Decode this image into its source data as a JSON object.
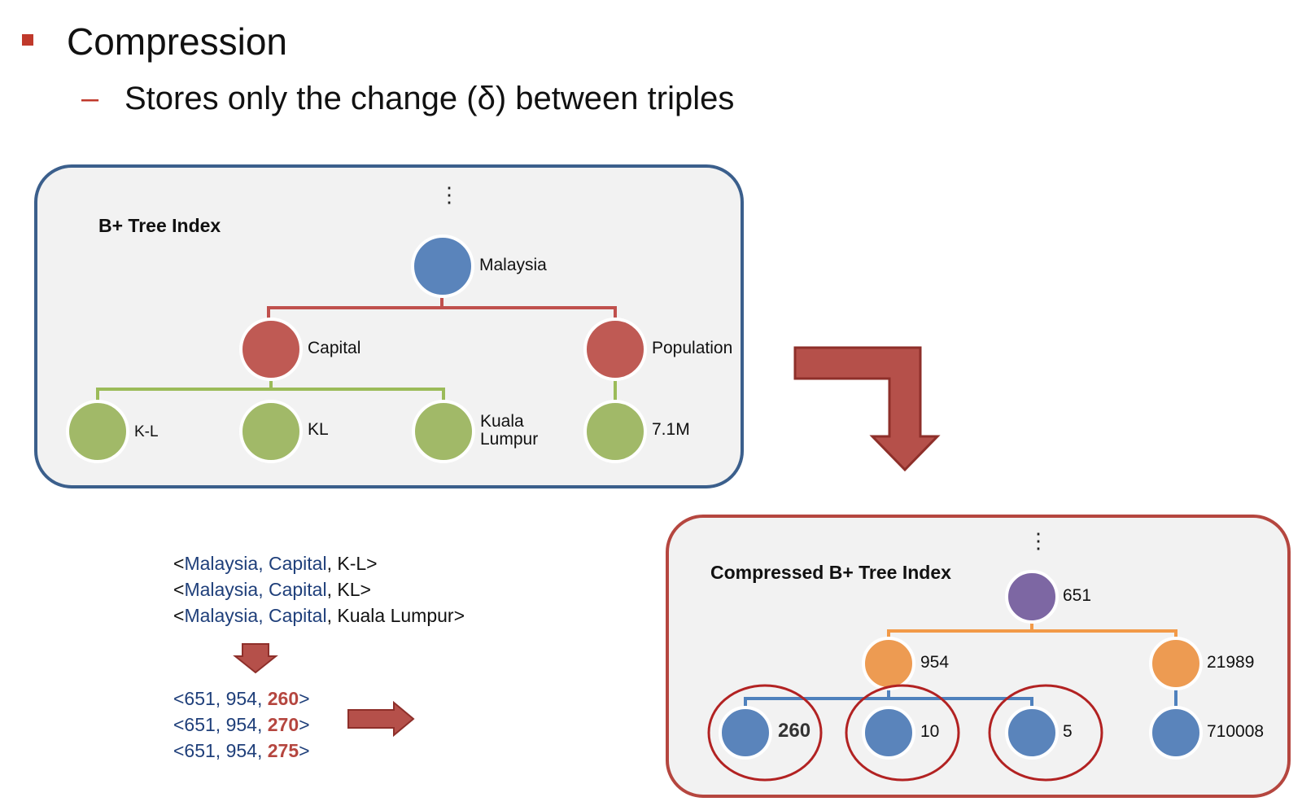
{
  "header": {
    "bullet": "Compression",
    "sub_bullet_dash": "–",
    "sub_bullet": "Stores only the change (δ) between triples"
  },
  "top_panel": {
    "title": "B+ Tree Index",
    "ellipsis": "⋮",
    "nodes": {
      "root": "Malaysia",
      "capital": "Capital",
      "population": "Population",
      "kl_dash": "K-L",
      "kl": "KL",
      "kuala_lumpur": [
        "Kuala",
        "Lumpur"
      ],
      "pop_value": "7.1M"
    }
  },
  "bottom_panel": {
    "title": "Compressed B+ Tree Index",
    "ellipsis": "⋮",
    "nodes": {
      "root": "651",
      "mid_left": "954",
      "mid_right": "21989",
      "leaf_1": "260",
      "leaf_2": "10",
      "leaf_3": "5",
      "leaf_4": "710008"
    }
  },
  "triples_text": [
    {
      "open": "<",
      "subject": "Malaysia",
      "sep1": ", ",
      "predicate": "Capital",
      "sep2": ", ",
      "object": "K-L",
      "close": ">"
    },
    {
      "open": "<",
      "subject": "Malaysia",
      "sep1": ", ",
      "predicate": "Capital",
      "sep2": ", ",
      "object": "KL",
      "close": ">"
    },
    {
      "open": "<",
      "subject": "Malaysia",
      "sep1": ", ",
      "predicate": "Capital",
      "sep2": ", ",
      "object": "Kuala Lumpur",
      "close": ">"
    }
  ],
  "triples_ids": [
    {
      "prefix": "<651, 954, ",
      "delta": "260",
      "close": ">"
    },
    {
      "prefix": "<651, 954, ",
      "delta": "270",
      "close": ">"
    },
    {
      "prefix": "<651, 954, ",
      "delta": "275",
      "close": ">"
    }
  ],
  "colors": {
    "accent_red": "#c0392b",
    "arrow_fill": "#b5504a",
    "arrow_stroke": "#8e2f2a",
    "top_border": "#3b5f8c",
    "bottom_border": "#b5463f",
    "node_blue": "#5a84bb",
    "node_red": "#bf5a54",
    "node_green": "#a1b968",
    "node_purple": "#7d67a3",
    "node_orange": "#ed9b52",
    "edge_red": "#c0504d",
    "edge_green": "#9bbb59",
    "edge_orange": "#f29a48",
    "edge_blue": "#4f81bd",
    "highlight_circle": "#b22222"
  }
}
